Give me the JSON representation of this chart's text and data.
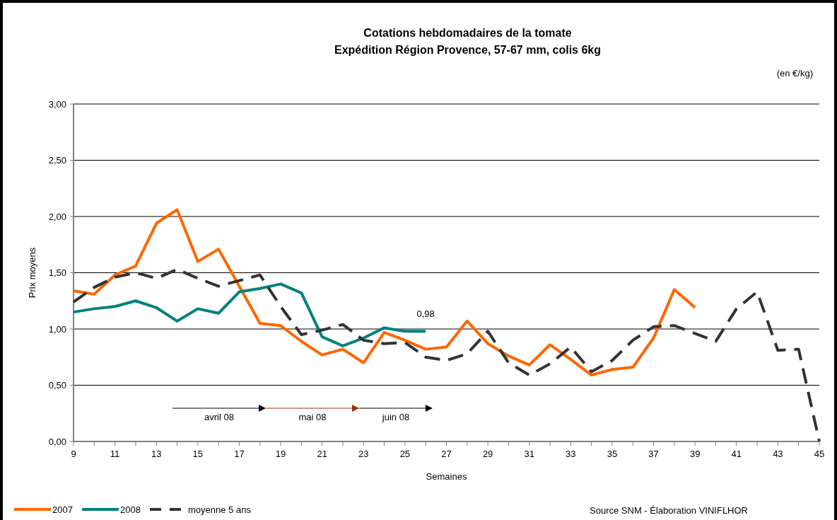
{
  "chart_data": {
    "type": "line",
    "title": "Cotations hebdomadaires de la tomate",
    "subtitle": "Expédition Région Provence, 57-67 mm, colis 6kg",
    "xlabel": "Semaines",
    "ylabel": "Prix moyens",
    "x": [
      9,
      10,
      11,
      12,
      13,
      14,
      15,
      16,
      17,
      18,
      19,
      20,
      21,
      22,
      23,
      24,
      25,
      26,
      27,
      28,
      29,
      30,
      31,
      32,
      33,
      34,
      35,
      36,
      37,
      38,
      39,
      40,
      41,
      42,
      43,
      44,
      45
    ],
    "series": [
      {
        "name": "2007",
        "color": "#ff6600",
        "line_style": "solid",
        "values": [
          1.34,
          1.31,
          1.48,
          1.56,
          1.94,
          2.06,
          1.6,
          1.71,
          1.38,
          1.05,
          1.03,
          0.89,
          0.77,
          0.82,
          0.7,
          0.97,
          0.9,
          0.82,
          0.84,
          1.07,
          0.87,
          0.76,
          0.68,
          0.86,
          0.73,
          0.59,
          0.64,
          0.66,
          0.92,
          1.35,
          1.19,
          null,
          null,
          null,
          null,
          null,
          null
        ]
      },
      {
        "name": "2008",
        "color": "#008080",
        "line_style": "solid",
        "values": [
          1.15,
          1.18,
          1.2,
          1.25,
          1.19,
          1.07,
          1.18,
          1.14,
          1.33,
          1.36,
          1.4,
          1.32,
          0.93,
          0.85,
          0.92,
          1.01,
          0.98,
          0.98,
          null,
          null,
          null,
          null,
          null,
          null,
          null,
          null,
          null,
          null,
          null,
          null,
          null,
          null,
          null,
          null,
          null,
          null,
          null
        ]
      },
      {
        "name": "moyenne 5 ans",
        "color": "#333333",
        "line_style": "dashed",
        "values": [
          1.24,
          1.37,
          1.46,
          1.5,
          1.45,
          1.53,
          1.45,
          1.38,
          1.43,
          1.48,
          1.2,
          0.95,
          0.99,
          1.04,
          0.9,
          0.87,
          0.88,
          0.75,
          0.72,
          0.78,
          0.98,
          0.7,
          0.59,
          0.69,
          0.84,
          0.62,
          0.72,
          0.9,
          1.02,
          1.03,
          0.96,
          0.89,
          1.18,
          1.33,
          0.81,
          0.82,
          0.0
        ]
      }
    ],
    "xlim": [
      9,
      45
    ],
    "xticks": [
      9,
      {
        "value": 10,
        "label": null
      },
      11,
      {
        "value": 12,
        "label": null
      },
      13,
      {
        "value": 14,
        "label": null
      },
      15,
      {
        "value": 16,
        "label": null
      },
      17,
      {
        "value": 18,
        "label": null
      },
      19,
      {
        "value": 20,
        "label": null
      },
      21,
      {
        "value": 22,
        "label": null
      },
      23,
      {
        "value": 24,
        "label": null
      },
      25,
      {
        "value": 26,
        "label": null
      },
      27,
      {
        "value": 28,
        "label": null
      },
      29,
      {
        "value": 30,
        "label": null
      },
      31,
      {
        "value": 32,
        "label": null
      },
      33,
      {
        "value": 34,
        "label": null
      },
      35,
      {
        "value": 36,
        "label": null
      },
      37,
      {
        "value": 38,
        "label": null
      },
      39,
      {
        "value": 40,
        "label": null
      },
      41,
      {
        "value": 42,
        "label": null
      },
      43,
      {
        "value": 44,
        "label": null
      },
      45
    ],
    "ylim": [
      0,
      3
    ],
    "yticks": [
      {
        "value": 0,
        "label": "0,00"
      },
      {
        "value": 0.5,
        "label": "0,50"
      },
      {
        "value": 1,
        "label": "1,00"
      },
      {
        "value": 1.5,
        "label": "1,50"
      },
      {
        "value": 2,
        "label": "2,00"
      },
      {
        "value": 2.5,
        "label": "2,50"
      },
      {
        "value": 3,
        "label": "3,00"
      }
    ],
    "grid": "y",
    "legend": "bottom",
    "marker": "none",
    "annotations": [
      "(en €/kg)",
      {
        "text": "0,98",
        "x": 26,
        "y": 0.98
      },
      "avril 08",
      "mai 08",
      "juin 08",
      "Source SNM - Élaboration VINIFLHOR"
    ]
  }
}
